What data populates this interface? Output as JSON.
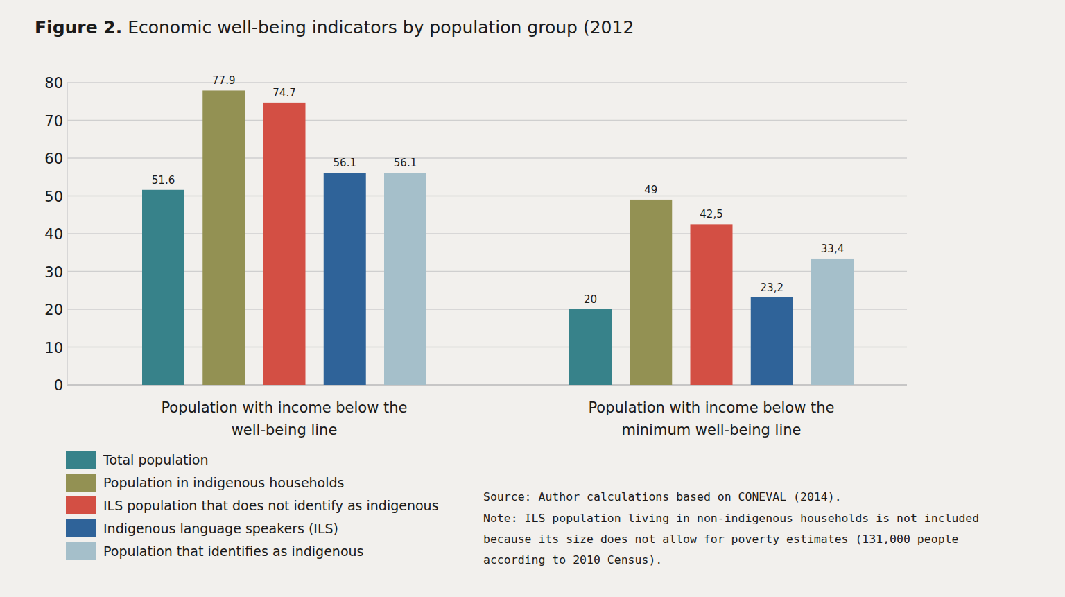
{
  "chart_data": {
    "type": "bar",
    "title": "Figure 2. Economic well-being indicators by population group (2012",
    "categories": [
      "Population with income below the well-being line",
      "Population with income below the minimum well-being line"
    ],
    "series": [
      {
        "name": "Total population",
        "color": "#37828a",
        "values": [
          51.6,
          20
        ],
        "value_labels": [
          "51.6",
          "20"
        ]
      },
      {
        "name": "Population in indigenous households",
        "color": "#939153",
        "values": [
          77.9,
          49
        ],
        "value_labels": [
          "77.9",
          "49"
        ]
      },
      {
        "name": "ILS population that does not identify as indigenous",
        "color": "#d34f44",
        "values": [
          74.7,
          42.5
        ],
        "value_labels": [
          "74.7",
          "42,5"
        ]
      },
      {
        "name": "Indigenous language speakers (ILS)",
        "color": "#2f6399",
        "values": [
          56.1,
          23.2
        ],
        "value_labels": [
          "56.1",
          "23,2"
        ]
      },
      {
        "name": "Population that identifies as indigenous",
        "color": "#a5bfca",
        "values": [
          56.1,
          33.4
        ],
        "value_labels": [
          "56.1",
          "33,4"
        ]
      }
    ],
    "ylim": [
      0,
      80
    ],
    "yticks": [
      0,
      10,
      20,
      30,
      40,
      50,
      60,
      70,
      80
    ],
    "grid": true,
    "data_labels": true,
    "legend": "bottom-left",
    "source": "Source: Author calculations based on CONEVAL (2014).",
    "note": "Note: ILS population living in non-indigenous households is not included because its size does not allow for poverty estimates (131,000 people according to 2010 Census)."
  }
}
